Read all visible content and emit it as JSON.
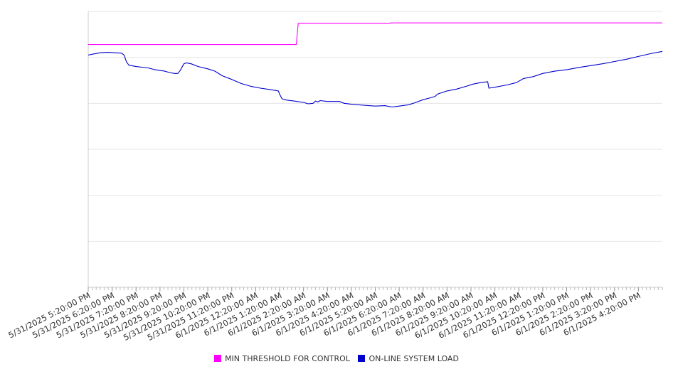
{
  "chart_data": {
    "type": "line",
    "title": "",
    "xlabel": "",
    "ylabel": "",
    "x_start": "5/31/2025 5:20:00 PM",
    "x_end": "6/1/2025 5:20:00 PM",
    "x_tick_labels": [
      "5/31/2025 5:20:00 PM",
      "5/31/2025 6:20:00 PM",
      "5/31/2025 7:20:00 PM",
      "5/31/2025 8:20:00 PM",
      "5/31/2025 9:20:00 PM",
      "5/31/2025 10:20:00 PM",
      "5/31/2025 11:20:00 PM",
      "6/1/2025 12:20:00 AM",
      "6/1/2025 1:20:00 AM",
      "6/1/2025 2:20:00 AM",
      "6/1/2025 3:20:00 AM",
      "6/1/2025 4:20:00 AM",
      "6/1/2025 5:20:00 AM",
      "6/1/2025 6:20:00 AM",
      "6/1/2025 7:20:00 AM",
      "6/1/2025 8:20:00 AM",
      "6/1/2025 9:20:00 AM",
      "6/1/2025 10:20:00 AM",
      "6/1/2025 11:20:00 AM",
      "6/1/2025 12:20:00 PM",
      "6/1/2025 1:20:00 PM",
      "6/1/2025 2:20:00 PM",
      "6/1/2025 3:20:00 PM",
      "6/1/2025 4:20:00 PM"
    ],
    "ylim": [
      0,
      6
    ],
    "y_gridlines": [
      1,
      2,
      3,
      4,
      5,
      6
    ],
    "y_tick_labels_visible": false,
    "grid": true,
    "legend_position": "bottom-center",
    "series": [
      {
        "name": "MIN THRESHOLD FOR CONTROL",
        "color": "#ff00ff",
        "points": [
          [
            0,
            5.28
          ],
          [
            8.7,
            5.28
          ],
          [
            8.78,
            5.74
          ],
          [
            12.6,
            5.74
          ],
          [
            12.65,
            5.75
          ],
          [
            24,
            5.75
          ]
        ]
      },
      {
        "name": "ON-LINE SYSTEM LOAD",
        "color": "#0000cc",
        "points": [
          [
            0,
            5.05
          ],
          [
            0.2,
            5.07
          ],
          [
            0.5,
            5.1
          ],
          [
            0.8,
            5.11
          ],
          [
            1.1,
            5.1
          ],
          [
            1.4,
            5.09
          ],
          [
            1.5,
            5.05
          ],
          [
            1.6,
            4.9
          ],
          [
            1.7,
            4.83
          ],
          [
            2.0,
            4.8
          ],
          [
            2.5,
            4.77
          ],
          [
            2.8,
            4.73
          ],
          [
            3.2,
            4.7
          ],
          [
            3.4,
            4.67
          ],
          [
            3.6,
            4.65
          ],
          [
            3.75,
            4.65
          ],
          [
            3.85,
            4.72
          ],
          [
            4.0,
            4.86
          ],
          [
            4.1,
            4.88
          ],
          [
            4.3,
            4.86
          ],
          [
            4.6,
            4.8
          ],
          [
            5.0,
            4.75
          ],
          [
            5.3,
            4.7
          ],
          [
            5.6,
            4.6
          ],
          [
            6.0,
            4.52
          ],
          [
            6.4,
            4.43
          ],
          [
            6.8,
            4.37
          ],
          [
            7.2,
            4.33
          ],
          [
            7.6,
            4.3
          ],
          [
            7.95,
            4.27
          ],
          [
            8.0,
            4.2
          ],
          [
            8.1,
            4.1
          ],
          [
            8.3,
            4.07
          ],
          [
            8.6,
            4.05
          ],
          [
            9.0,
            4.02
          ],
          [
            9.2,
            3.99
          ],
          [
            9.4,
            4.0
          ],
          [
            9.5,
            4.05
          ],
          [
            9.6,
            4.03
          ],
          [
            9.7,
            4.06
          ],
          [
            10.0,
            4.04
          ],
          [
            10.5,
            4.04
          ],
          [
            10.7,
            4.0
          ],
          [
            11.0,
            3.98
          ],
          [
            11.5,
            3.96
          ],
          [
            12.0,
            3.94
          ],
          [
            12.4,
            3.95
          ],
          [
            12.7,
            3.92
          ],
          [
            13.0,
            3.94
          ],
          [
            13.4,
            3.97
          ],
          [
            13.7,
            4.02
          ],
          [
            14.0,
            4.08
          ],
          [
            14.3,
            4.12
          ],
          [
            14.5,
            4.15
          ],
          [
            14.6,
            4.2
          ],
          [
            15.0,
            4.27
          ],
          [
            15.4,
            4.31
          ],
          [
            15.8,
            4.37
          ],
          [
            16.1,
            4.42
          ],
          [
            16.4,
            4.45
          ],
          [
            16.7,
            4.47
          ],
          [
            16.75,
            4.33
          ],
          [
            17.0,
            4.35
          ],
          [
            17.5,
            4.4
          ],
          [
            17.9,
            4.45
          ],
          [
            18.2,
            4.54
          ],
          [
            18.6,
            4.58
          ],
          [
            19.0,
            4.65
          ],
          [
            19.5,
            4.7
          ],
          [
            20.0,
            4.73
          ],
          [
            20.5,
            4.78
          ],
          [
            21.0,
            4.82
          ],
          [
            21.5,
            4.86
          ],
          [
            22.0,
            4.91
          ],
          [
            22.5,
            4.96
          ],
          [
            23.0,
            5.02
          ],
          [
            23.5,
            5.08
          ],
          [
            24.0,
            5.13
          ]
        ]
      }
    ]
  }
}
